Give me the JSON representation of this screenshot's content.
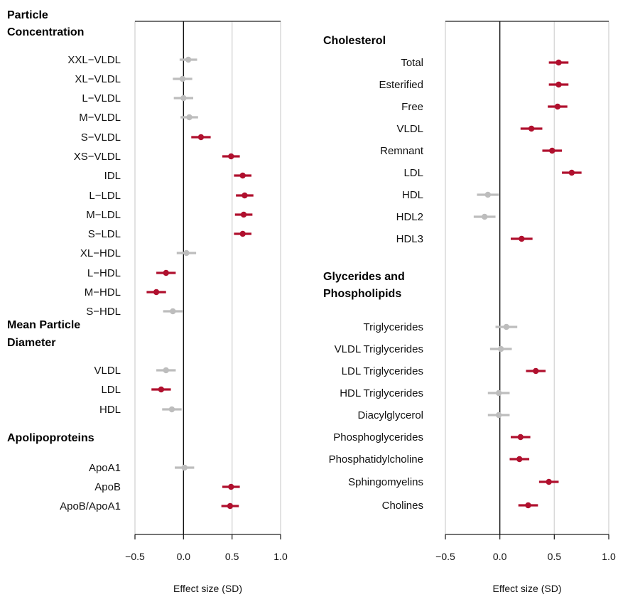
{
  "colors": {
    "significant": "#b0102e",
    "nonsignificant": "#bdbdbd",
    "grid": "#d9d9d9"
  },
  "chart_data": [
    {
      "type": "forest",
      "xlabel": "Effect size (SD)",
      "xlim": [
        -0.5,
        1.0
      ],
      "xticks": [
        "−0.5",
        "0.0",
        "0.5",
        "1.0"
      ],
      "xtick_values": [
        -0.5,
        0.0,
        0.5,
        1.0
      ],
      "grid": true,
      "groups": [
        {
          "title_lines": [
            "Particle",
            "Concentration"
          ],
          "rows": [
            {
              "label": "XXL−VLDL",
              "value": 0.05,
              "ci": [
                -0.04,
                0.14
              ],
              "significant": false
            },
            {
              "label": "XL−VLDL",
              "value": -0.01,
              "ci": [
                -0.11,
                0.09
              ],
              "significant": false
            },
            {
              "label": "L−VLDL",
              "value": 0.0,
              "ci": [
                -0.1,
                0.1
              ],
              "significant": false
            },
            {
              "label": "M−VLDL",
              "value": 0.06,
              "ci": [
                -0.03,
                0.15
              ],
              "significant": false
            },
            {
              "label": "S−VLDL",
              "value": 0.18,
              "ci": [
                0.08,
                0.28
              ],
              "significant": true
            },
            {
              "label": "XS−VLDL",
              "value": 0.49,
              "ci": [
                0.4,
                0.58
              ],
              "significant": true
            },
            {
              "label": "IDL",
              "value": 0.61,
              "ci": [
                0.52,
                0.7
              ],
              "significant": true
            },
            {
              "label": "L−LDL",
              "value": 0.63,
              "ci": [
                0.54,
                0.72
              ],
              "significant": true
            },
            {
              "label": "M−LDL",
              "value": 0.62,
              "ci": [
                0.53,
                0.71
              ],
              "significant": true
            },
            {
              "label": "S−LDL",
              "value": 0.61,
              "ci": [
                0.52,
                0.7
              ],
              "significant": true
            },
            {
              "label": "XL−HDL",
              "value": 0.03,
              "ci": [
                -0.07,
                0.13
              ],
              "significant": false
            },
            {
              "label": "L−HDL",
              "value": -0.18,
              "ci": [
                -0.28,
                -0.08
              ],
              "significant": true
            },
            {
              "label": "M−HDL",
              "value": -0.28,
              "ci": [
                -0.38,
                -0.18
              ],
              "significant": true
            },
            {
              "label": "S−HDL",
              "value": -0.11,
              "ci": [
                -0.21,
                -0.01
              ],
              "significant": false
            }
          ]
        },
        {
          "title_lines": [
            "Mean Particle",
            "Diameter"
          ],
          "rows": [
            {
              "label": "VLDL",
              "value": -0.18,
              "ci": [
                -0.28,
                -0.08
              ],
              "significant": false
            },
            {
              "label": "LDL",
              "value": -0.23,
              "ci": [
                -0.33,
                -0.13
              ],
              "significant": true
            },
            {
              "label": "HDL",
              "value": -0.12,
              "ci": [
                -0.22,
                -0.02
              ],
              "significant": false
            }
          ]
        },
        {
          "title_lines": [
            "Apolipoproteins"
          ],
          "rows": [
            {
              "label": "ApoA1",
              "value": 0.01,
              "ci": [
                -0.09,
                0.11
              ],
              "significant": false
            },
            {
              "label": "ApoB",
              "value": 0.49,
              "ci": [
                0.4,
                0.58
              ],
              "significant": true
            },
            {
              "label": "ApoB/ApoA1",
              "value": 0.48,
              "ci": [
                0.39,
                0.57
              ],
              "significant": true
            }
          ]
        }
      ]
    },
    {
      "type": "forest",
      "xlabel": "Effect size (SD)",
      "xlim": [
        -0.5,
        1.0
      ],
      "xticks": [
        "−0.5",
        "0.0",
        "0.5",
        "1.0"
      ],
      "xtick_values": [
        -0.5,
        0.0,
        0.5,
        1.0
      ],
      "grid": true,
      "groups": [
        {
          "title_lines": [
            "Cholesterol"
          ],
          "rows": [
            {
              "label": "Total",
              "value": 0.54,
              "ci": [
                0.45,
                0.63
              ],
              "significant": true
            },
            {
              "label": "Esterified",
              "value": 0.54,
              "ci": [
                0.45,
                0.63
              ],
              "significant": true
            },
            {
              "label": "Free",
              "value": 0.53,
              "ci": [
                0.44,
                0.62
              ],
              "significant": true
            },
            {
              "label": "VLDL",
              "value": 0.29,
              "ci": [
                0.19,
                0.39
              ],
              "significant": true
            },
            {
              "label": "Remnant",
              "value": 0.48,
              "ci": [
                0.39,
                0.57
              ],
              "significant": true
            },
            {
              "label": "LDL",
              "value": 0.66,
              "ci": [
                0.57,
                0.75
              ],
              "significant": true
            },
            {
              "label": "HDL",
              "value": -0.11,
              "ci": [
                -0.21,
                -0.01
              ],
              "significant": false
            },
            {
              "label": "HDL2",
              "value": -0.14,
              "ci": [
                -0.24,
                -0.04
              ],
              "significant": false
            },
            {
              "label": "HDL3",
              "value": 0.2,
              "ci": [
                0.1,
                0.3
              ],
              "significant": true
            }
          ]
        },
        {
          "title_lines": [
            "Glycerides and",
            "Phospholipids"
          ],
          "rows": [
            {
              "label": "Triglycerides",
              "value": 0.06,
              "ci": [
                -0.04,
                0.16
              ],
              "significant": false
            },
            {
              "label": "VLDL Triglycerides",
              "value": 0.01,
              "ci": [
                -0.09,
                0.11
              ],
              "significant": false
            },
            {
              "label": "LDL Triglycerides",
              "value": 0.33,
              "ci": [
                0.24,
                0.42
              ],
              "significant": true
            },
            {
              "label": "HDL Triglycerides",
              "value": -0.01,
              "ci": [
                -0.11,
                0.09
              ],
              "significant": false
            },
            {
              "label": "Diacylglycerol",
              "value": -0.01,
              "ci": [
                -0.11,
                0.09
              ],
              "significant": false
            },
            {
              "label": "Phosphoglycerides",
              "value": 0.19,
              "ci": [
                0.1,
                0.28
              ],
              "significant": true
            },
            {
              "label": "Phosphatidylcholine",
              "value": 0.18,
              "ci": [
                0.09,
                0.27
              ],
              "significant": true
            },
            {
              "label": "Sphingomyelins",
              "value": 0.45,
              "ci": [
                0.36,
                0.54
              ],
              "significant": true
            },
            {
              "label": "Cholines",
              "value": 0.26,
              "ci": [
                0.17,
                0.35
              ],
              "significant": true
            }
          ]
        }
      ]
    }
  ]
}
